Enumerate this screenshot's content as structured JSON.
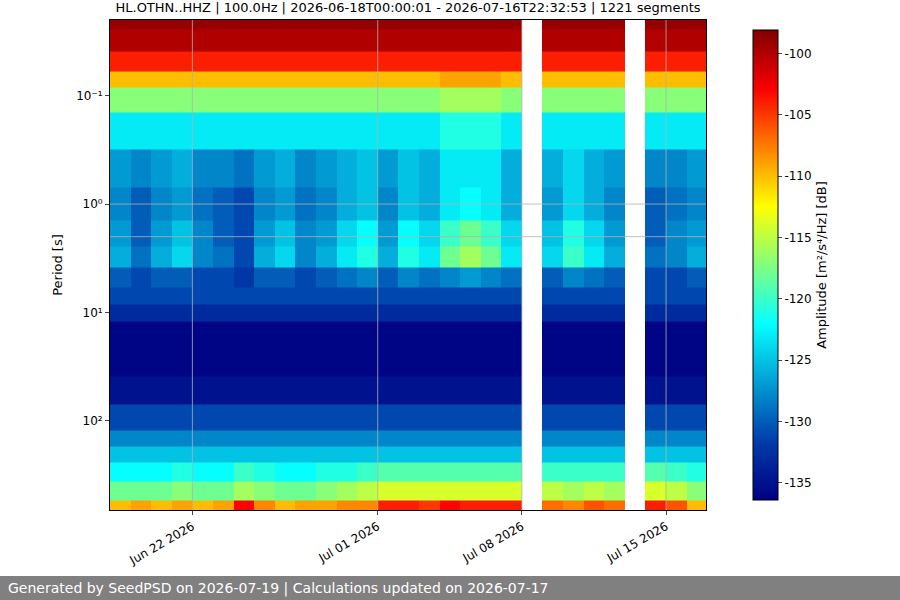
{
  "chart_data": {
    "type": "heatmap",
    "title": "HL.OTHN..HHZ | 100.0Hz | 2026-06-18T00:00:01 - 2026-07-16T22:32:53 | 1221 segments",
    "ylabel": "Period [s]",
    "colorbar_label": "Amplitude [m²/s⁴/Hz] [dB]",
    "footer": "Generated by SeedPSD on 2026-07-19 | Calculations updated on 2026-07-17",
    "log": "y",
    "grid": true,
    "x": [
      "2026-06-18",
      "2026-06-19",
      "2026-06-20",
      "2026-06-21",
      "2026-06-22",
      "2026-06-23",
      "2026-06-24",
      "2026-06-25",
      "2026-06-26",
      "2026-06-27",
      "2026-06-28",
      "2026-06-29",
      "2026-06-30",
      "2026-07-01",
      "2026-07-02",
      "2026-07-03",
      "2026-07-04",
      "2026-07-05",
      "2026-07-06",
      "2026-07-07",
      "2026-07-08",
      "2026-07-09",
      "2026-07-10",
      "2026-07-11",
      "2026-07-12",
      "2026-07-13",
      "2026-07-14",
      "2026-07-15",
      "2026-07-16"
    ],
    "y": [
      0.02,
      0.03,
      0.05,
      0.07,
      0.1,
      0.2,
      0.5,
      1,
      2,
      3,
      5,
      7,
      10,
      15,
      20,
      30,
      50,
      100,
      150,
      200,
      300,
      450,
      650
    ],
    "z": [
      [
        -99,
        -99,
        -99,
        -99,
        -99,
        -99,
        -99,
        -99,
        -99,
        -99,
        -99,
        -99,
        -99,
        -99,
        -99,
        -99,
        -99,
        -99,
        -99,
        -99,
        null,
        -99,
        -99,
        -99,
        -99,
        null,
        -99,
        -99,
        -99
      ],
      [
        -100,
        -100,
        -100,
        -100,
        -100,
        -100,
        -100,
        -100,
        -100,
        -100,
        -100,
        -100,
        -100,
        -100,
        -100,
        -100,
        -100,
        -100,
        -100,
        -100,
        null,
        -100,
        -100,
        -100,
        -100,
        null,
        -100,
        -100,
        -100
      ],
      [
        -104,
        -104,
        -104,
        -104,
        -104,
        -104,
        -104,
        -104,
        -104,
        -104,
        -104,
        -104,
        -104,
        -104,
        -104,
        -104,
        -104,
        -104,
        -104,
        -104,
        null,
        -104,
        -104,
        -104,
        -104,
        null,
        -104,
        -104,
        -104
      ],
      [
        -110,
        -110,
        -110,
        -110,
        -110,
        -110,
        -110,
        -110,
        -110,
        -110,
        -110,
        -110,
        -110,
        -110,
        -110,
        -110,
        -109,
        -109,
        -109,
        -110,
        null,
        -110,
        -110,
        -110,
        -110,
        null,
        -110,
        -110,
        -110
      ],
      [
        -117,
        -117,
        -117,
        -117,
        -117,
        -117,
        -117,
        -117,
        -117,
        -117,
        -117,
        -117,
        -117,
        -117,
        -117,
        -117,
        -116,
        -116,
        -116,
        -117,
        null,
        -117,
        -117,
        -117,
        -117,
        null,
        -117,
        -117,
        -117
      ],
      [
        -123,
        -123,
        -123,
        -123,
        -123,
        -123,
        -123,
        -123,
        -123,
        -123,
        -123,
        -123,
        -123,
        -123,
        -123,
        -123,
        -121,
        -121,
        -121,
        -123,
        null,
        -123,
        -123,
        -123,
        -123,
        null,
        -123,
        -123,
        -123
      ],
      [
        -127,
        -128,
        -127,
        -126,
        -128,
        -128,
        -129,
        -127,
        -126,
        -128,
        -127,
        -126,
        -125,
        -127,
        -125,
        -126,
        -123,
        -123,
        -123,
        -126,
        null,
        -126,
        -124,
        -126,
        -127,
        null,
        -128,
        -128,
        -127
      ],
      [
        -128,
        -130,
        -128,
        -127,
        -129,
        -130,
        -131,
        -128,
        -127,
        -129,
        -128,
        -126,
        -125,
        -128,
        -125,
        -126,
        -123,
        -122,
        -123,
        -126,
        null,
        -127,
        -124,
        -126,
        -128,
        null,
        -130,
        -129,
        -128
      ],
      [
        -127,
        -130,
        -127,
        -125,
        -128,
        -130,
        -131,
        -127,
        -125,
        -128,
        -127,
        -124,
        -122,
        -127,
        -122,
        -124,
        -120,
        -118,
        -120,
        -124,
        null,
        -125,
        -121,
        -124,
        -127,
        null,
        -130,
        -128,
        -127
      ],
      [
        -126,
        -129,
        -126,
        -124,
        -128,
        -129,
        -131,
        -126,
        -124,
        -128,
        -126,
        -123,
        -121,
        -126,
        -121,
        -123,
        -118,
        -116,
        -118,
        -123,
        null,
        -124,
        -120,
        -123,
        -126,
        null,
        -129,
        -128,
        -126
      ],
      [
        -130,
        -131,
        -130,
        -130,
        -131,
        -131,
        -132,
        -130,
        -130,
        -131,
        -130,
        -129,
        -128,
        -130,
        -128,
        -129,
        -128,
        -127,
        -128,
        -129,
        null,
        -130,
        -128,
        -129,
        -130,
        null,
        -131,
        -131,
        -130
      ],
      [
        -131,
        -131,
        -131,
        -131,
        -131,
        -131,
        -131,
        -131,
        -131,
        -131,
        -131,
        -131,
        -131,
        -131,
        -131,
        -131,
        -131,
        -131,
        -131,
        -131,
        null,
        -131,
        -131,
        -131,
        -131,
        null,
        -131,
        -131,
        -131
      ],
      [
        -133,
        -133,
        -133,
        -133,
        -133,
        -133,
        -133,
        -133,
        -133,
        -133,
        -133,
        -133,
        -133,
        -133,
        -133,
        -133,
        -133,
        -133,
        -133,
        -133,
        null,
        -133,
        -133,
        -133,
        -133,
        null,
        -133,
        -133,
        -133
      ],
      [
        -136,
        -136,
        -136,
        -136,
        -136,
        -136,
        -136,
        -136,
        -136,
        -136,
        -136,
        -136,
        -136,
        -136,
        -136,
        -136,
        -136,
        -136,
        -136,
        -136,
        null,
        -136,
        -136,
        -136,
        -136,
        null,
        -136,
        -136,
        -136
      ],
      [
        -136,
        -136,
        -136,
        -136,
        -136,
        -136,
        -136,
        -136,
        -136,
        -136,
        -136,
        -136,
        -136,
        -136,
        -136,
        -136,
        -136,
        -136,
        -136,
        -136,
        null,
        -136,
        -136,
        -136,
        -136,
        null,
        -136,
        -136,
        -136
      ],
      [
        -136,
        -136,
        -136,
        -136,
        -136,
        -136,
        -136,
        -136,
        -136,
        -136,
        -136,
        -136,
        -136,
        -136,
        -136,
        -136,
        -136,
        -136,
        -136,
        -136,
        null,
        -136,
        -136,
        -136,
        -136,
        null,
        -136,
        -136,
        -136
      ],
      [
        -135,
        -135,
        -135,
        -135,
        -135,
        -135,
        -135,
        -135,
        -135,
        -135,
        -135,
        -135,
        -135,
        -135,
        -135,
        -135,
        -135,
        -135,
        -135,
        -135,
        null,
        -135,
        -135,
        -135,
        -135,
        null,
        -135,
        -135,
        -135
      ],
      [
        -131,
        -131,
        -131,
        -131,
        -131,
        -131,
        -131,
        -131,
        -131,
        -131,
        -131,
        -131,
        -131,
        -131,
        -131,
        -131,
        -131,
        -131,
        -131,
        -131,
        null,
        -131,
        -131,
        -131,
        -131,
        null,
        -131,
        -131,
        -131
      ],
      [
        -128,
        -128,
        -128,
        -128,
        -128,
        -128,
        -128,
        -128,
        -128,
        -128,
        -128,
        -128,
        -128,
        -128,
        -128,
        -128,
        -128,
        -128,
        -128,
        -128,
        null,
        -128,
        -128,
        -128,
        -128,
        null,
        -128,
        -128,
        -128
      ],
      [
        -125,
        -125,
        -125,
        -125,
        -125,
        -125,
        -125,
        -125,
        -125,
        -125,
        -125,
        -125,
        -125,
        -125,
        -125,
        -125,
        -125,
        -125,
        -125,
        -125,
        null,
        -125,
        -125,
        -125,
        -125,
        null,
        -125,
        -125,
        -125
      ],
      [
        -122,
        -122,
        -122,
        -121,
        -122,
        -122,
        -120,
        -121,
        -122,
        -122,
        -121,
        -121,
        -120,
        -119,
        -119,
        -119,
        -119,
        -119,
        -119,
        -119,
        null,
        -120,
        -120,
        -120,
        -120,
        null,
        -119,
        -120,
        -121
      ],
      [
        -118,
        -118,
        -118,
        -117,
        -118,
        -118,
        -116,
        -117,
        -118,
        -118,
        -117,
        -116,
        -115,
        -114,
        -114,
        -114,
        -114,
        -114,
        -114,
        -114,
        null,
        -115,
        -116,
        -115,
        -116,
        null,
        -114,
        -115,
        -117
      ],
      [
        -110,
        -109,
        -110,
        -109,
        -110,
        -109,
        -103,
        -108,
        -110,
        -109,
        -109,
        -108,
        -108,
        -104,
        -104,
        -105,
        -103,
        -104,
        -104,
        -104,
        null,
        -107,
        -108,
        -106,
        -107,
        null,
        -104,
        -106,
        -110
      ]
    ],
    "xlim": [
      "2026-06-18 00:00:01",
      "2026-07-16 22:32:53"
    ],
    "xticks": [
      {
        "value": "2026-06-22",
        "label": "Jun 22 2026"
      },
      {
        "value": "2026-07-01",
        "label": "Jul 01 2026"
      },
      {
        "value": "2026-07-08",
        "label": "Jul 08 2026"
      },
      {
        "value": "2026-07-15",
        "label": "Jul 15 2026"
      }
    ],
    "ylim": [
      0.02,
      667
    ],
    "yticks": [
      {
        "value": 0.1,
        "label": "10⁻¹"
      },
      {
        "value": 1,
        "label": "10⁰"
      },
      {
        "value": 10,
        "label": "10¹"
      },
      {
        "value": 100,
        "label": "10²"
      }
    ],
    "zlim": [
      -136.4,
      -98.1
    ],
    "zticks": [
      -135,
      -130,
      -125,
      -120,
      -115,
      -110,
      -105,
      -100
    ]
  }
}
